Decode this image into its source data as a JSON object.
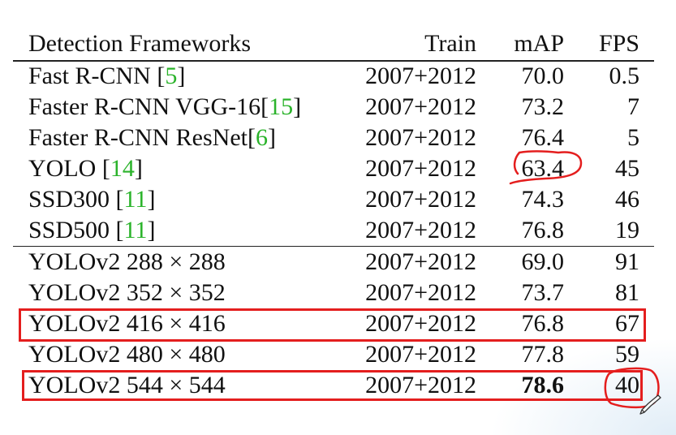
{
  "table": {
    "headers": {
      "framework": "Detection Frameworks",
      "train": "Train",
      "map": "mAP",
      "fps": "FPS"
    },
    "rows": [
      {
        "name": "Fast R-CNN ",
        "cite": "5",
        "train": "2007+2012",
        "map": "70.0",
        "fps": "0.5"
      },
      {
        "name": "Faster R-CNN VGG-16",
        "cite": "15",
        "train": "2007+2012",
        "map": "73.2",
        "fps": "7"
      },
      {
        "name": "Faster R-CNN ResNet",
        "cite": "6",
        "train": "2007+2012",
        "map": "76.4",
        "fps": "5"
      },
      {
        "name": "YOLO ",
        "cite": "14",
        "train": "2007+2012",
        "map": "63.4",
        "fps": "45"
      },
      {
        "name": "SSD300 ",
        "cite": "11",
        "train": "2007+2012",
        "map": "74.3",
        "fps": "46"
      },
      {
        "name": "SSD500 ",
        "cite": "11",
        "train": "2007+2012",
        "map": "76.8",
        "fps": "19"
      },
      {
        "name": "YOLOv2 288 × 288",
        "train": "2007+2012",
        "map": "69.0",
        "fps": "91"
      },
      {
        "name": "YOLOv2 352 × 352",
        "train": "2007+2012",
        "map": "73.7",
        "fps": "81"
      },
      {
        "name": "YOLOv2 416 × 416",
        "train": "2007+2012",
        "map": "76.8",
        "fps": "67"
      },
      {
        "name": "YOLOv2 480 × 480",
        "train": "2007+2012",
        "map": "77.8",
        "fps": "59"
      },
      {
        "name": "YOLOv2 544 × 544",
        "train": "2007+2012",
        "map": "78.6",
        "fps": "40",
        "map_bold": true
      }
    ]
  },
  "colors": {
    "citation": "#2bb32b",
    "annotation": "#e41e1e"
  }
}
